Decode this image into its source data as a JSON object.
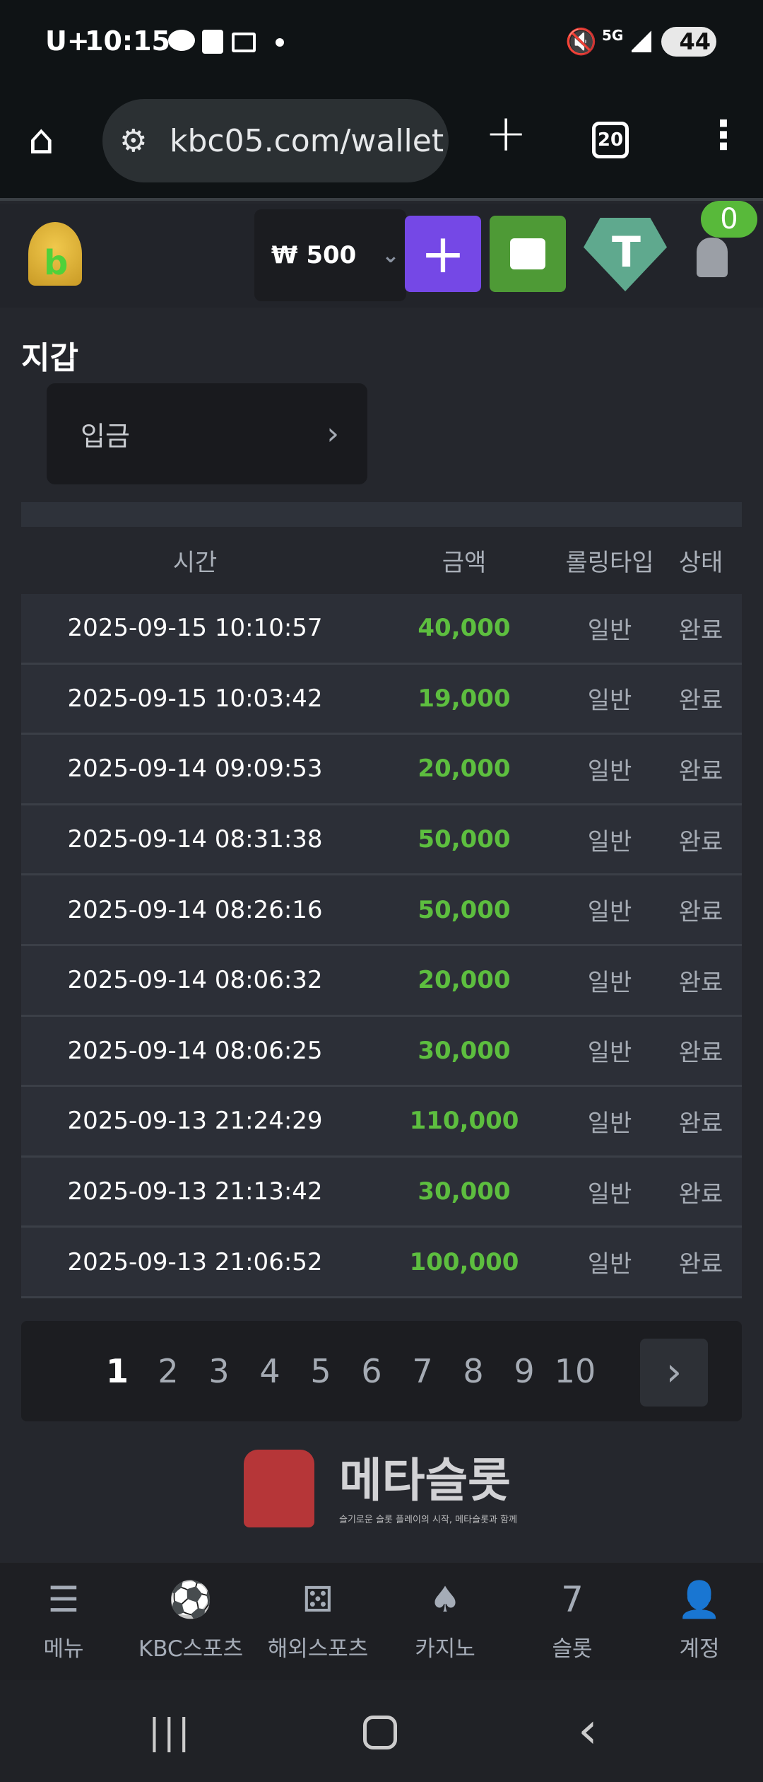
{
  "status_bar": {
    "carrier": "U+",
    "time": "10:15",
    "network": "5G",
    "battery": "44"
  },
  "browser": {
    "url": "kbc05.com/wallet",
    "tab_count": "20"
  },
  "header": {
    "balance": "₩ 500",
    "notification_count": "0"
  },
  "page": {
    "title": "지갑",
    "deposit_label": "입금"
  },
  "table": {
    "headers": [
      "시간",
      "금액",
      "롤링타입",
      "상태"
    ],
    "rows": [
      {
        "time": "2025-09-15 10:10:57",
        "amount": "40,000",
        "rolling": "일반",
        "status": "완료"
      },
      {
        "time": "2025-09-15 10:03:42",
        "amount": "19,000",
        "rolling": "일반",
        "status": "완료"
      },
      {
        "time": "2025-09-14 09:09:53",
        "amount": "20,000",
        "rolling": "일반",
        "status": "완료"
      },
      {
        "time": "2025-09-14 08:31:38",
        "amount": "50,000",
        "rolling": "일반",
        "status": "완료"
      },
      {
        "time": "2025-09-14 08:26:16",
        "amount": "50,000",
        "rolling": "일반",
        "status": "완료"
      },
      {
        "time": "2025-09-14 08:06:32",
        "amount": "20,000",
        "rolling": "일반",
        "status": "완료"
      },
      {
        "time": "2025-09-14 08:06:25",
        "amount": "30,000",
        "rolling": "일반",
        "status": "완료"
      },
      {
        "time": "2025-09-13 21:24:29",
        "amount": "110,000",
        "rolling": "일반",
        "status": "완료"
      },
      {
        "time": "2025-09-13 21:13:42",
        "amount": "30,000",
        "rolling": "일반",
        "status": "완료"
      },
      {
        "time": "2025-09-13 21:06:52",
        "amount": "100,000",
        "rolling": "일반",
        "status": "완료"
      }
    ]
  },
  "pagination": {
    "pages": [
      "1",
      "2",
      "3",
      "4",
      "5",
      "6",
      "7",
      "8",
      "9",
      "10"
    ],
    "current": "1"
  },
  "watermark": {
    "title": "메타슬롯",
    "subtitle": "슬기로운 슬롯 플레이의 시작, 메타슬롯과 함께"
  },
  "bottom_nav": [
    {
      "label": "메뉴",
      "icon": "menu-search-icon"
    },
    {
      "label": "KBC스포츠",
      "icon": "soccer-ball-icon"
    },
    {
      "label": "해외스포츠",
      "icon": "dice-icon"
    },
    {
      "label": "카지노",
      "icon": "cards-icon"
    },
    {
      "label": "슬롯",
      "icon": "slot-seven-icon"
    },
    {
      "label": "계정",
      "icon": "user-coin-icon"
    }
  ],
  "colors": {
    "amount": "#5dbe3f",
    "add_button": "#7548e6",
    "vault_button": "#4e9a36",
    "tether": "#5fa98e",
    "badge": "#58b93a"
  }
}
